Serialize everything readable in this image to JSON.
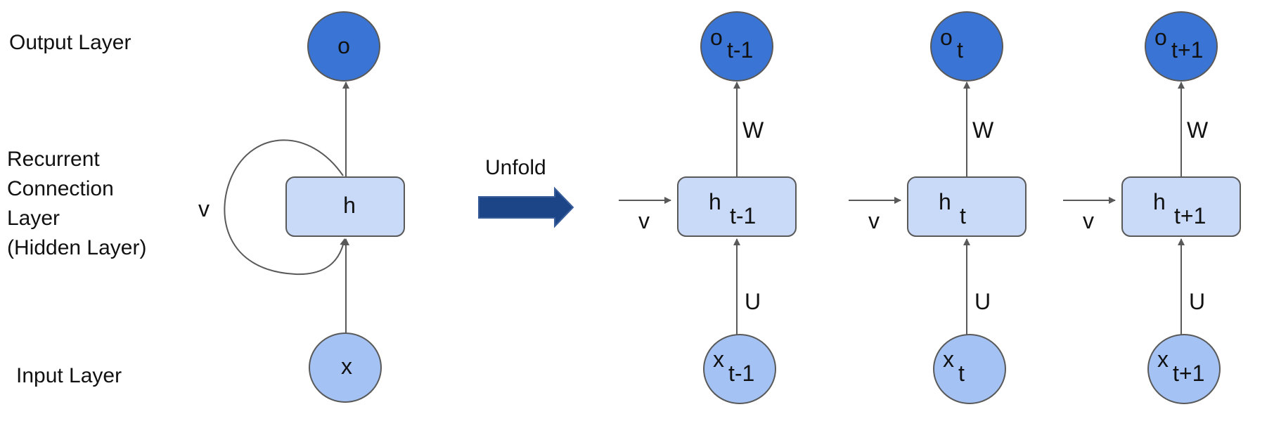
{
  "layer_labels": {
    "output": "Output Layer",
    "recurrent": [
      "Recurrent",
      "Connection",
      "Layer",
      "(Hidden Layer)"
    ],
    "input": "Input Layer"
  },
  "folded": {
    "output_node": "o",
    "hidden_node": "h",
    "input_node": "x",
    "loop_label": "v"
  },
  "unfold_label": "Unfold",
  "steps": [
    {
      "o": "o",
      "o_sub": "t-1",
      "h": "h",
      "h_sub": "t-1",
      "x": "x",
      "x_sub": "t-1",
      "W": "W",
      "U": "U",
      "v": "v"
    },
    {
      "o": "o",
      "o_sub": "t",
      "h": "h",
      "h_sub": "t",
      "x": "x",
      "x_sub": "t",
      "W": "W",
      "U": "U",
      "v": "v"
    },
    {
      "o": "o",
      "o_sub": "t+1",
      "h": "h",
      "h_sub": "t+1",
      "x": "x",
      "x_sub": "t+1",
      "W": "W",
      "U": "U",
      "v": "v"
    }
  ],
  "colors": {
    "output_node": "#3a75d6",
    "hidden_node": "#c9daf8",
    "input_node": "#a4c2f4",
    "stroke": "#595959",
    "unfold_arrow": "#1c4587"
  }
}
